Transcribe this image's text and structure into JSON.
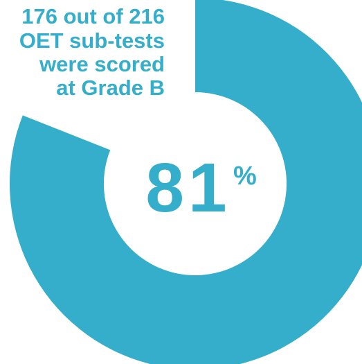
{
  "chart_data": {
    "type": "donut",
    "title_lines": [
      "176 out of 216",
      "OET sub-tests",
      "were scored",
      "at Grade B"
    ],
    "values": [
      81
    ],
    "value_labels": [
      "81"
    ],
    "unit_label": "%",
    "color": "#35aecb"
  }
}
